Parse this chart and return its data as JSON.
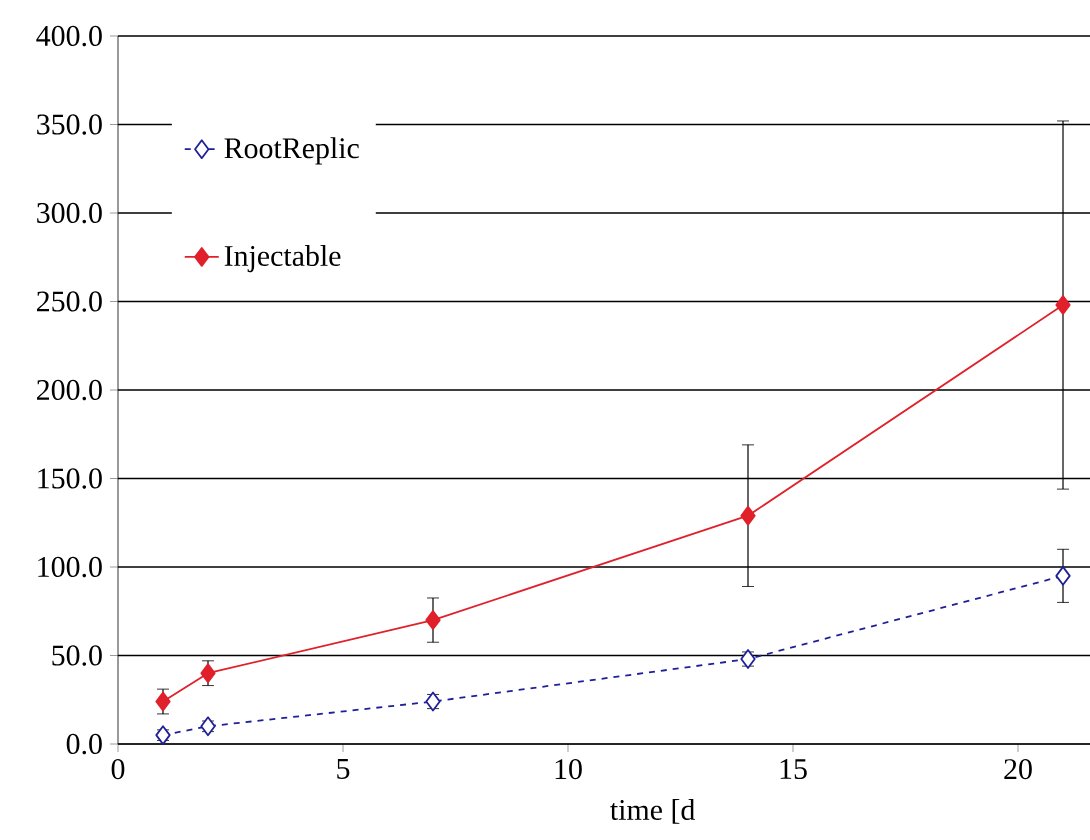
{
  "chart_data": {
    "type": "line",
    "xlabel": "time [d",
    "x": [
      1,
      2,
      7,
      14,
      21
    ],
    "series": [
      {
        "name": "RootReplic",
        "color": "#1f1f99",
        "line_style": "dashed",
        "marker": "diamond",
        "values": [
          5,
          10,
          24,
          48,
          95
        ],
        "errors": [
          3,
          3,
          4,
          4,
          15
        ]
      },
      {
        "name": "Injectable",
        "color": "#e0202a",
        "line_style": "solid",
        "marker": "diamond",
        "values": [
          24,
          40,
          70,
          129,
          248
        ],
        "errors": [
          7,
          7,
          12.5,
          40,
          104
        ]
      }
    ],
    "xlim": [
      0,
      21.6
    ],
    "ylim": [
      0,
      400
    ],
    "xticks": [
      0,
      5,
      10,
      15,
      20
    ],
    "yticks": [
      {
        "value": 0,
        "label": "0.0"
      },
      {
        "value": 50,
        "label": "50.0"
      },
      {
        "value": 100,
        "label": "100.0"
      },
      {
        "value": 150,
        "label": "150.0"
      },
      {
        "value": 200,
        "label": "200.0"
      },
      {
        "value": 250,
        "label": "250.0"
      },
      {
        "value": 300,
        "label": "300.0"
      },
      {
        "value": 350,
        "label": "350.0"
      },
      {
        "value": 400,
        "label": "400.0"
      }
    ],
    "grid": "y",
    "legend": "top left"
  }
}
